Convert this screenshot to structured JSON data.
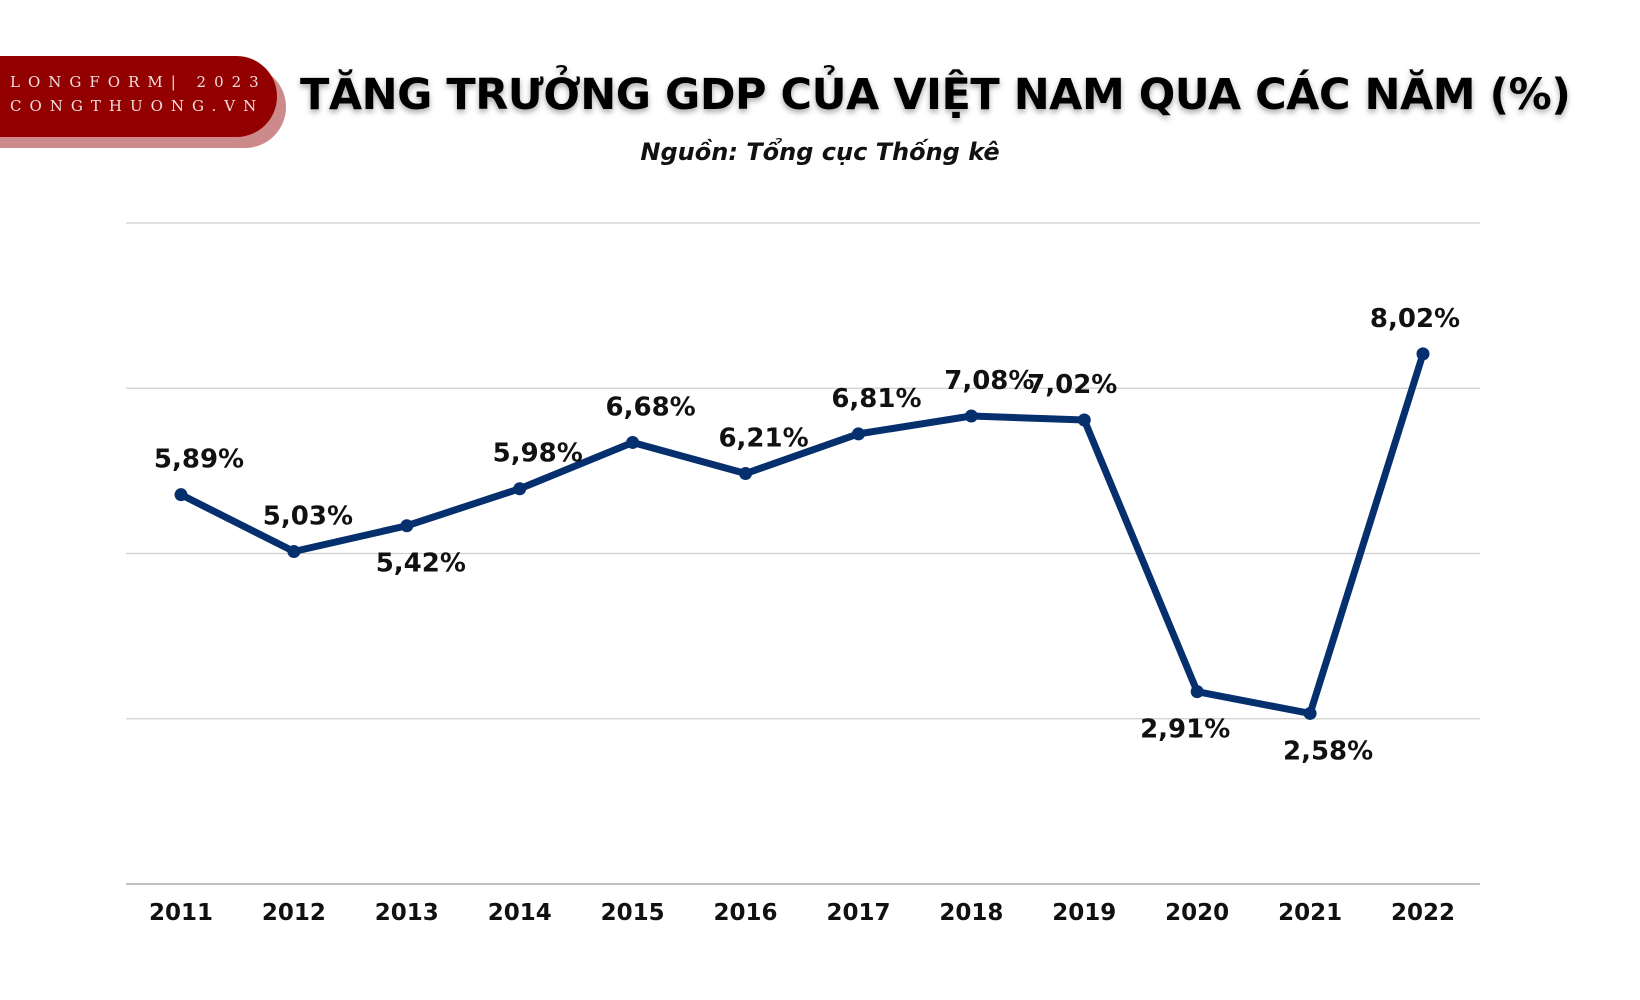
{
  "logo": {
    "line1": "LONGFORM| 2023",
    "line2": "CONGTHUONG.VN",
    "color": "#920000"
  },
  "title": "TĂNG TRƯỞNG GDP CỦA VIỆT NAM QUA CÁC NĂM (%)",
  "subtitle": "Nguồn: Tổng cục Thống kê",
  "chart_data": {
    "type": "line",
    "title": "TĂNG TRƯỞNG GDP CỦA VIỆT NAM QUA CÁC NĂM (%)",
    "subtitle": "Nguồn: Tổng cục Thống kê",
    "categories": [
      "2011",
      "2012",
      "2013",
      "2014",
      "2015",
      "2016",
      "2017",
      "2018",
      "2019",
      "2020",
      "2021",
      "2022"
    ],
    "values": [
      5.89,
      5.03,
      5.42,
      5.98,
      6.68,
      6.21,
      6.81,
      7.08,
      7.02,
      2.91,
      2.58,
      8.02
    ],
    "labels": [
      "5,89%",
      "5,03%",
      "5,42%",
      "5,98%",
      "6,68%",
      "6,21%",
      "6,81%",
      "7,08%",
      "7,02%",
      "2,91%",
      "2,58%",
      "8,02%"
    ],
    "label_position": [
      "above",
      "above",
      "below",
      "above",
      "above",
      "above",
      "above",
      "above",
      "above",
      "below",
      "below",
      "above"
    ],
    "ylim": [
      0,
      10
    ],
    "gridlines": [
      0,
      2.5,
      5,
      7.5,
      10
    ],
    "grid": true,
    "y_tick_labels_shown": false,
    "line_color": "#062f6e",
    "grid_color": "#cfcfcf"
  }
}
